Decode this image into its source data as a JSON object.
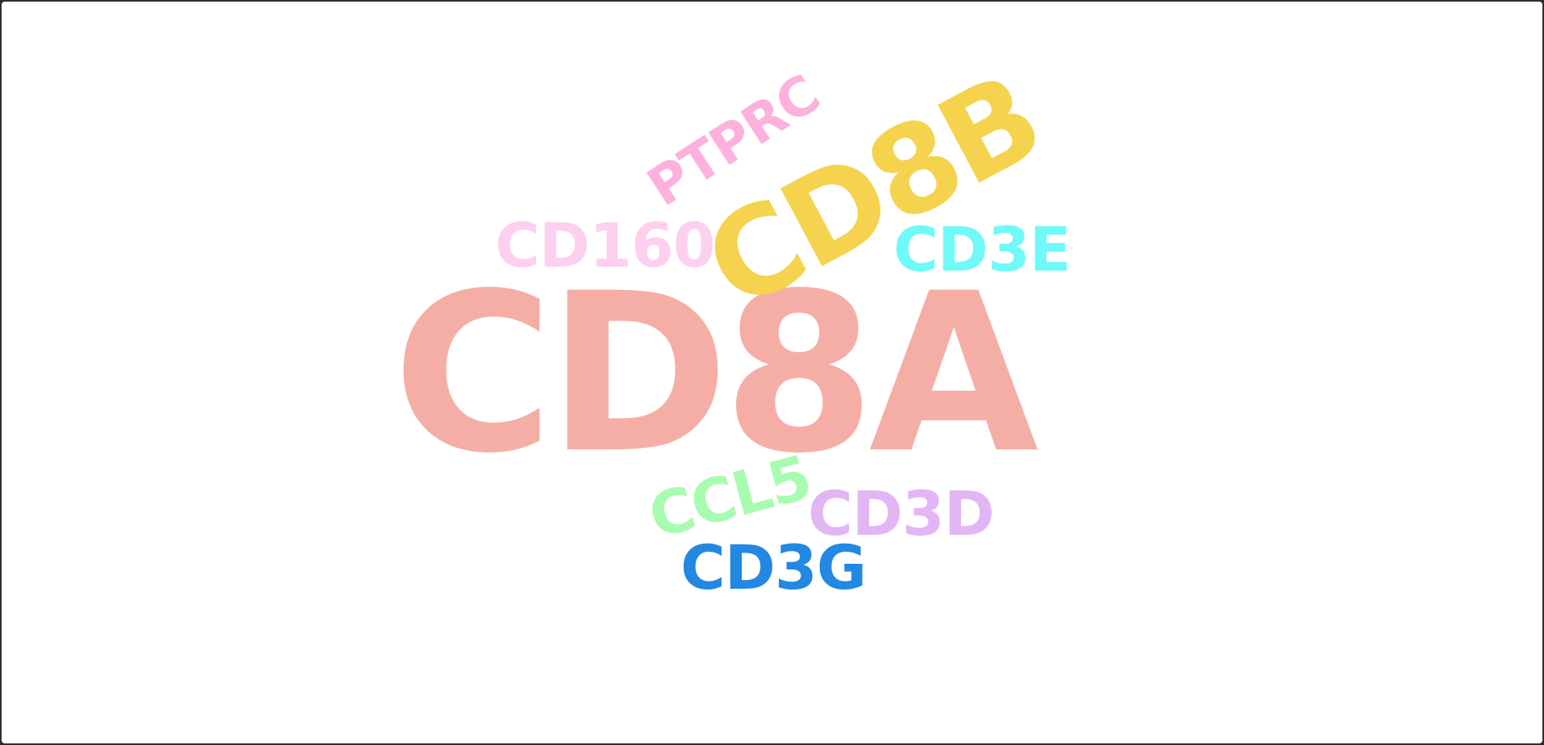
{
  "words": [
    {
      "id": "cd8a",
      "text": "CD8A",
      "color": "#f5aea6"
    },
    {
      "id": "cd8b",
      "text": "CD8B",
      "color": "#f5d34e"
    },
    {
      "id": "ptprc",
      "text": "PTPRC",
      "color": "#fdb1dc"
    },
    {
      "id": "cd160",
      "text": "CD160",
      "color": "#fdd0f0"
    },
    {
      "id": "cd3e",
      "text": "CD3E",
      "color": "#6ffaf8"
    },
    {
      "id": "ccl5",
      "text": "CCL5",
      "color": "#a8fcb0"
    },
    {
      "id": "cd3d",
      "text": "CD3D",
      "color": "#e2b5f5"
    },
    {
      "id": "cd3g",
      "text": "CD3G",
      "color": "#2288e2"
    }
  ]
}
